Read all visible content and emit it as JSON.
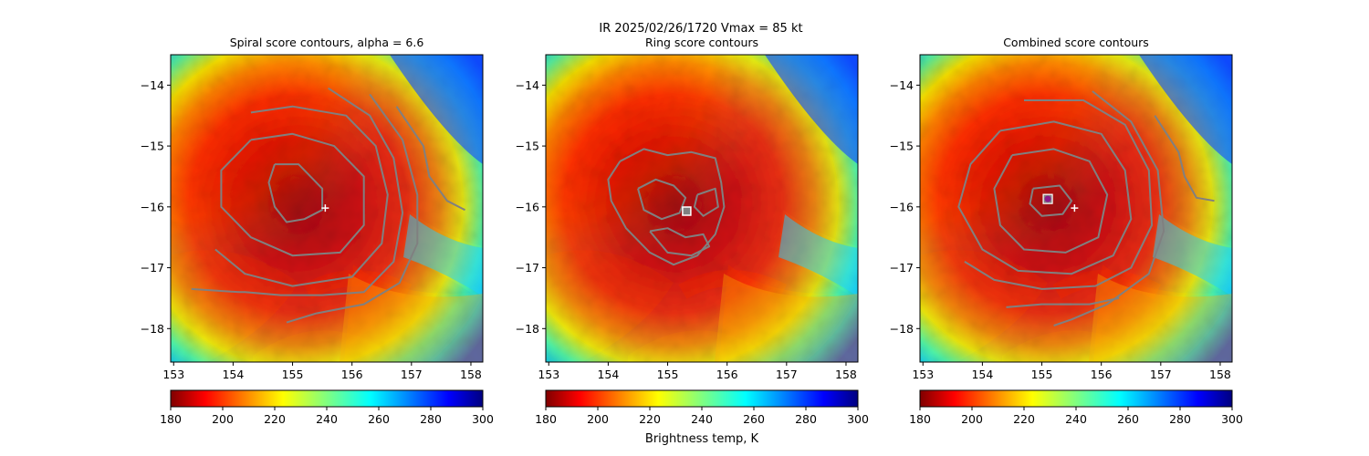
{
  "figure": {
    "suptitle": "IR  2025/02/26/1720    Vmax = 85 kt",
    "colorbar_label": "Brightness temp, K"
  },
  "colors": {
    "contour": "#808080",
    "marker_plus": "#ffffff",
    "marker_square_edge": "#ffffff",
    "marker_square_fill": "#808080",
    "marker_circle_fill": "#8b1a8b",
    "frame": "#000000"
  },
  "chart_data": [
    {
      "type": "heatmap",
      "title": "Spiral score contours, alpha =  6.6",
      "field": "IR brightness temperature (K)",
      "xlim": [
        152.95,
        158.2
      ],
      "ylim": [
        -18.55,
        -13.5
      ],
      "xticks": [
        153,
        154,
        155,
        156,
        157,
        158
      ],
      "yticks": [
        -14,
        -15,
        -16,
        -17,
        -18
      ],
      "storm_center": {
        "lon": 155.1,
        "lat": -15.95
      },
      "colormap": "jet",
      "colorbar": {
        "min": 180,
        "max": 300,
        "ticks": [
          180,
          200,
          220,
          240,
          260,
          280,
          300
        ]
      },
      "contours": [
        [
          [
            154.7,
            -15.3
          ],
          [
            155.1,
            -15.3
          ],
          [
            155.5,
            -15.7
          ],
          [
            155.5,
            -16.05
          ],
          [
            155.2,
            -16.2
          ],
          [
            154.9,
            -16.25
          ],
          [
            154.7,
            -16.0
          ],
          [
            154.6,
            -15.6
          ],
          [
            154.7,
            -15.3
          ]
        ],
        [
          [
            154.3,
            -14.9
          ],
          [
            155.0,
            -14.8
          ],
          [
            155.7,
            -15.0
          ],
          [
            156.2,
            -15.5
          ],
          [
            156.2,
            -16.3
          ],
          [
            155.8,
            -16.75
          ],
          [
            155.0,
            -16.8
          ],
          [
            154.3,
            -16.5
          ],
          [
            153.8,
            -16.0
          ],
          [
            153.8,
            -15.4
          ],
          [
            154.3,
            -14.9
          ]
        ],
        [
          [
            154.3,
            -14.45
          ],
          [
            155.0,
            -14.35
          ],
          [
            155.9,
            -14.5
          ],
          [
            156.4,
            -15.0
          ],
          [
            156.6,
            -15.8
          ],
          [
            156.5,
            -16.6
          ],
          [
            156.0,
            -17.15
          ],
          [
            155.0,
            -17.3
          ],
          [
            154.2,
            -17.1
          ],
          [
            153.7,
            -16.7
          ]
        ],
        [
          [
            155.6,
            -14.05
          ],
          [
            156.3,
            -14.5
          ],
          [
            156.7,
            -15.2
          ],
          [
            156.85,
            -16.1
          ],
          [
            156.7,
            -16.9
          ],
          [
            156.2,
            -17.4
          ],
          [
            155.5,
            -17.45
          ],
          [
            154.8,
            -17.45
          ],
          [
            154.2,
            -17.4
          ],
          [
            154.1,
            -17.4
          ],
          [
            153.3,
            -17.35
          ]
        ],
        [
          [
            156.3,
            -14.15
          ],
          [
            156.85,
            -14.9
          ],
          [
            157.1,
            -15.8
          ],
          [
            157.1,
            -16.6
          ],
          [
            156.8,
            -17.25
          ],
          [
            156.2,
            -17.6
          ],
          [
            155.4,
            -17.75
          ],
          [
            154.9,
            -17.9
          ]
        ],
        [
          [
            156.75,
            -14.35
          ],
          [
            157.2,
            -15.0
          ],
          [
            157.3,
            -15.5
          ],
          [
            157.6,
            -15.9
          ],
          [
            157.9,
            -16.05
          ]
        ]
      ],
      "markers": [
        {
          "kind": "plus",
          "lon": 155.55,
          "lat": -16.02
        }
      ]
    },
    {
      "type": "heatmap",
      "title": "Ring score contours",
      "field": "IR brightness temperature (K)",
      "xlim": [
        152.95,
        158.2
      ],
      "ylim": [
        -18.55,
        -13.5
      ],
      "xticks": [
        153,
        154,
        155,
        156,
        157,
        158
      ],
      "yticks": [
        -14,
        -15,
        -16,
        -17,
        -18
      ],
      "storm_center": {
        "lon": 155.1,
        "lat": -15.95
      },
      "colormap": "jet",
      "colorbar": {
        "min": 180,
        "max": 300,
        "ticks": [
          180,
          200,
          220,
          240,
          260,
          280,
          300
        ]
      },
      "contours": [
        [
          [
            154.2,
            -15.25
          ],
          [
            154.6,
            -15.05
          ],
          [
            155.0,
            -15.15
          ],
          [
            155.4,
            -15.1
          ],
          [
            155.8,
            -15.2
          ],
          [
            155.9,
            -15.6
          ],
          [
            155.95,
            -16.0
          ],
          [
            155.8,
            -16.45
          ],
          [
            155.5,
            -16.8
          ],
          [
            155.1,
            -16.95
          ],
          [
            154.7,
            -16.75
          ],
          [
            154.3,
            -16.35
          ],
          [
            154.05,
            -15.9
          ],
          [
            154.0,
            -15.55
          ],
          [
            154.2,
            -15.25
          ]
        ],
        [
          [
            154.5,
            -15.7
          ],
          [
            154.8,
            -15.55
          ],
          [
            155.1,
            -15.65
          ],
          [
            155.3,
            -15.85
          ],
          [
            155.2,
            -16.1
          ],
          [
            154.9,
            -16.2
          ],
          [
            154.6,
            -16.05
          ],
          [
            154.5,
            -15.7
          ]
        ],
        [
          [
            154.7,
            -16.4
          ],
          [
            155.0,
            -16.35
          ],
          [
            155.3,
            -16.5
          ],
          [
            155.6,
            -16.45
          ],
          [
            155.7,
            -16.65
          ],
          [
            155.4,
            -16.8
          ],
          [
            155.0,
            -16.75
          ],
          [
            154.7,
            -16.4
          ]
        ],
        [
          [
            155.5,
            -15.8
          ],
          [
            155.8,
            -15.7
          ],
          [
            155.85,
            -16.0
          ],
          [
            155.6,
            -16.15
          ],
          [
            155.45,
            -16.0
          ],
          [
            155.5,
            -15.8
          ]
        ]
      ],
      "markers": [
        {
          "kind": "square",
          "lon": 155.32,
          "lat": -16.07
        }
      ]
    },
    {
      "type": "heatmap",
      "title": "Combined score contours",
      "field": "IR brightness temperature (K)",
      "xlim": [
        152.95,
        158.2
      ],
      "ylim": [
        -18.55,
        -13.5
      ],
      "xticks": [
        153,
        154,
        155,
        156,
        157,
        158
      ],
      "yticks": [
        -14,
        -15,
        -16,
        -17,
        -18
      ],
      "storm_center": {
        "lon": 155.1,
        "lat": -15.95
      },
      "colormap": "jet",
      "colorbar": {
        "min": 180,
        "max": 300,
        "ticks": [
          180,
          200,
          220,
          240,
          260,
          280,
          300
        ]
      },
      "contours": [
        [
          [
            154.85,
            -15.7
          ],
          [
            155.3,
            -15.65
          ],
          [
            155.5,
            -15.9
          ],
          [
            155.35,
            -16.12
          ],
          [
            155.0,
            -16.15
          ],
          [
            154.8,
            -15.95
          ],
          [
            154.85,
            -15.7
          ]
        ],
        [
          [
            154.5,
            -15.15
          ],
          [
            155.2,
            -15.05
          ],
          [
            155.8,
            -15.25
          ],
          [
            156.1,
            -15.8
          ],
          [
            155.95,
            -16.5
          ],
          [
            155.4,
            -16.75
          ],
          [
            154.7,
            -16.7
          ],
          [
            154.3,
            -16.3
          ],
          [
            154.2,
            -15.7
          ],
          [
            154.5,
            -15.15
          ]
        ],
        [
          [
            154.3,
            -14.75
          ],
          [
            155.2,
            -14.6
          ],
          [
            156.0,
            -14.8
          ],
          [
            156.4,
            -15.4
          ],
          [
            156.5,
            -16.2
          ],
          [
            156.2,
            -16.8
          ],
          [
            155.5,
            -17.1
          ],
          [
            154.6,
            -17.05
          ],
          [
            154.0,
            -16.7
          ],
          [
            153.6,
            -16.0
          ],
          [
            153.8,
            -15.3
          ],
          [
            154.3,
            -14.75
          ]
        ],
        [
          [
            154.7,
            -14.25
          ],
          [
            155.7,
            -14.25
          ],
          [
            156.4,
            -14.65
          ],
          [
            156.8,
            -15.4
          ],
          [
            156.85,
            -16.3
          ],
          [
            156.5,
            -17.0
          ],
          [
            155.9,
            -17.3
          ],
          [
            155.0,
            -17.35
          ],
          [
            154.2,
            -17.2
          ],
          [
            153.7,
            -16.9
          ]
        ],
        [
          [
            155.85,
            -14.1
          ],
          [
            156.5,
            -14.6
          ],
          [
            156.95,
            -15.4
          ],
          [
            157.05,
            -16.4
          ],
          [
            156.8,
            -17.1
          ],
          [
            156.1,
            -17.6
          ],
          [
            155.5,
            -17.85
          ],
          [
            155.2,
            -17.95
          ]
        ],
        [
          [
            155.3,
            -17.6
          ],
          [
            155.8,
            -17.6
          ],
          [
            156.3,
            -17.5
          ]
        ],
        [
          [
            154.4,
            -17.65
          ],
          [
            155.0,
            -17.6
          ],
          [
            155.5,
            -17.6
          ]
        ],
        [
          [
            156.9,
            -14.5
          ],
          [
            157.3,
            -15.1
          ],
          [
            157.4,
            -15.5
          ],
          [
            157.6,
            -15.85
          ],
          [
            157.9,
            -15.9
          ]
        ]
      ],
      "markers": [
        {
          "kind": "circle",
          "lon": 155.1,
          "lat": -15.87
        },
        {
          "kind": "plus",
          "lon": 155.55,
          "lat": -16.02
        }
      ]
    }
  ]
}
